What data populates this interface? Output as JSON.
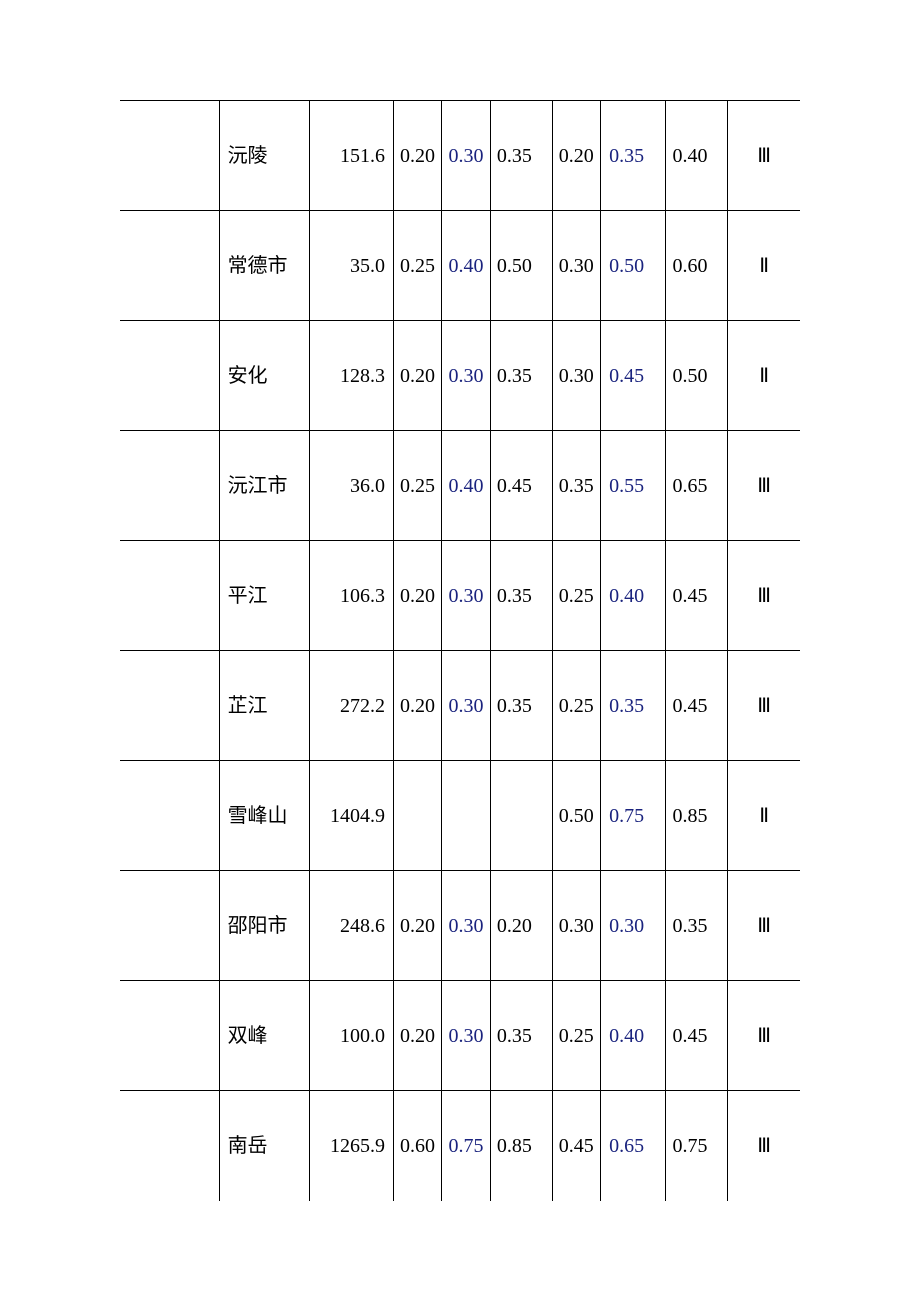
{
  "table": {
    "text_color": "#000000",
    "accent_color": "#1a237e",
    "border_color": "#000000",
    "background": "#ffffff",
    "font_family": "SimSun",
    "font_size_pt": 15,
    "rows": [
      {
        "name": "沅陵",
        "v1": "151.6",
        "c3": "0.20",
        "c4": "0.30",
        "c5": "0.35",
        "c6": "0.20",
        "c7": "0.35",
        "c8": "0.40",
        "grade": "Ⅲ"
      },
      {
        "name": "常德市",
        "v1": "35.0",
        "c3": "0.25",
        "c4": "0.40",
        "c5": "0.50",
        "c6": "0.30",
        "c7": "0.50",
        "c8": "0.60",
        "grade": "Ⅱ"
      },
      {
        "name": "安化",
        "v1": "128.3",
        "c3": "0.20",
        "c4": "0.30",
        "c5": "0.35",
        "c6": "0.30",
        "c7": "0.45",
        "c8": "0.50",
        "grade": "Ⅱ"
      },
      {
        "name": "沅江市",
        "v1": "36.0",
        "c3": "0.25",
        "c4": "0.40",
        "c5": "0.45",
        "c6": "0.35",
        "c7": "0.55",
        "c8": "0.65",
        "grade": "Ⅲ"
      },
      {
        "name": "平江",
        "v1": "106.3",
        "c3": "0.20",
        "c4": "0.30",
        "c5": "0.35",
        "c6": "0.25",
        "c7": "0.40",
        "c8": "0.45",
        "grade": "Ⅲ"
      },
      {
        "name": "芷江",
        "v1": "272.2",
        "c3": "0.20",
        "c4": "0.30",
        "c5": "0.35",
        "c6": "0.25",
        "c7": "0.35",
        "c8": "0.45",
        "grade": "Ⅲ"
      },
      {
        "name": "雪峰山",
        "v1": "1404.9",
        "c3": "",
        "c4": "",
        "c5": "",
        "c6": "0.50",
        "c7": "0.75",
        "c8": "0.85",
        "grade": "Ⅱ"
      },
      {
        "name": "邵阳市",
        "v1": "248.6",
        "c3": "0.20",
        "c4": "0.30",
        "c5": "0.20",
        "c6": "0.30",
        "c7": "0.30",
        "c8": "0.35",
        "grade": "Ⅲ"
      },
      {
        "name": "双峰",
        "v1": "100.0",
        "c3": "0.20",
        "c4": "0.30",
        "c5": "0.35",
        "c6": "0.25",
        "c7": "0.40",
        "c8": "0.45",
        "grade": "Ⅲ"
      },
      {
        "name": "南岳",
        "v1": "1265.9",
        "c3": "0.60",
        "c4": "0.75",
        "c5": "0.85",
        "c6": "0.45",
        "c7": "0.65",
        "c8": "0.75",
        "grade": "Ⅲ"
      }
    ]
  }
}
